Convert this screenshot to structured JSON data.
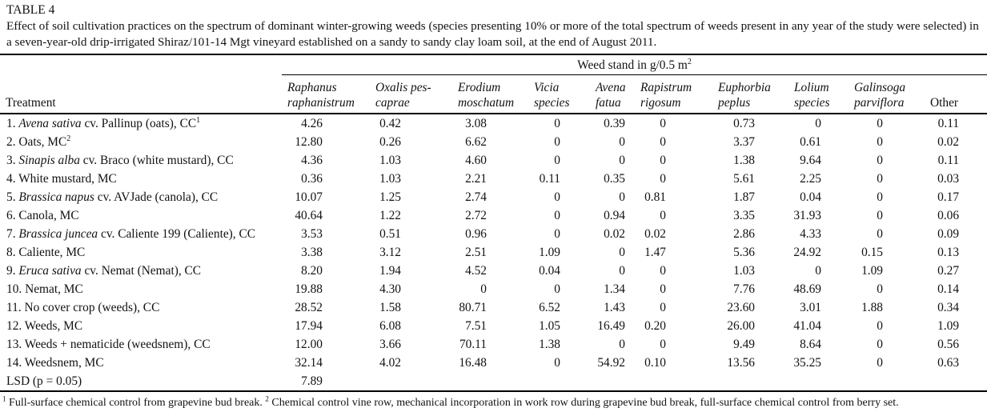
{
  "page": {
    "table_label": "TABLE 4",
    "caption": "Effect of soil cultivation practices on the spectrum of dominant winter-growing weeds (species presenting 10% or more of the total spectrum of weeds present in any year of the study were selected) in a seven-year-old drip-irrigated Shiraz/101-14 Mgt vineyard established on a sandy to sandy clay loam soil, at the end of August 2011.",
    "footnote": {
      "sup1": "1",
      "text1": " Full-surface chemical control from grapevine bud break. ",
      "sup2": "2",
      "text2": " Chemical control vine row, mechanical incorporation in work row during grapevine bud break, full-surface chemical control from berry set."
    }
  },
  "table": {
    "span_header": "Weed stand in g/0.5 m",
    "span_header_sup": "2",
    "treatment_header": "Treatment",
    "columns": [
      {
        "lines": [
          "Raphanus",
          "raphanistrum"
        ],
        "italic": true
      },
      {
        "lines": [
          "Oxalis pes-",
          "caprae"
        ],
        "italic": true
      },
      {
        "lines": [
          "Erodium",
          "moschatum"
        ],
        "italic": true
      },
      {
        "lines": [
          "Vicia",
          "species"
        ],
        "italic": true
      },
      {
        "lines": [
          "Avena",
          "fatua"
        ],
        "italic": true
      },
      {
        "lines": [
          "Rapistrum",
          "rigosum"
        ],
        "italic": true
      },
      {
        "lines": [
          "Euphorbia",
          "peplus"
        ],
        "italic": true
      },
      {
        "lines": [
          "Lolium",
          "species"
        ],
        "italic": true
      },
      {
        "lines": [
          "Galinsoga",
          "parviflora"
        ],
        "italic": true
      },
      {
        "lines": [
          "Other"
        ],
        "italic": false
      }
    ],
    "rows": [
      {
        "treatment": [
          {
            "t": "1. "
          },
          {
            "t": "Avena sativa",
            "i": true
          },
          {
            "t": " cv. Pallinup (oats), CC"
          },
          {
            "t": "1",
            "sup": true
          }
        ],
        "values": [
          "4.26",
          "0.42",
          "3.08",
          "0",
          "0.39",
          "0",
          "0.73",
          "0",
          "0",
          "0.11"
        ]
      },
      {
        "treatment": [
          {
            "t": "2. Oats, MC"
          },
          {
            "t": "2",
            "sup": true
          }
        ],
        "values": [
          "12.80",
          "0.26",
          "6.62",
          "0",
          "0",
          "0",
          "3.37",
          "0.61",
          "0",
          "0.02"
        ]
      },
      {
        "treatment": [
          {
            "t": "3. "
          },
          {
            "t": "Sinapis alba",
            "i": true
          },
          {
            "t": " cv. Braco (white mustard), CC"
          }
        ],
        "values": [
          "4.36",
          "1.03",
          "4.60",
          "0",
          "0",
          "0",
          "1.38",
          "9.64",
          "0",
          "0.11"
        ]
      },
      {
        "treatment": [
          {
            "t": "4. White mustard, MC"
          }
        ],
        "values": [
          "0.36",
          "1.03",
          "2.21",
          "0.11",
          "0.35",
          "0",
          "5.61",
          "2.25",
          "0",
          "0.03"
        ]
      },
      {
        "treatment": [
          {
            "t": "5. "
          },
          {
            "t": "Brassica napus",
            "i": true
          },
          {
            "t": " cv. AVJade (canola), CC"
          }
        ],
        "values": [
          "10.07",
          "1.25",
          "2.74",
          "0",
          "0",
          "0.81",
          "1.87",
          "0.04",
          "0",
          "0.17"
        ]
      },
      {
        "treatment": [
          {
            "t": "6. Canola, MC"
          }
        ],
        "values": [
          "40.64",
          "1.22",
          "2.72",
          "0",
          "0.94",
          "0",
          "3.35",
          "31.93",
          "0",
          "0.06"
        ]
      },
      {
        "treatment": [
          {
            "t": "7. "
          },
          {
            "t": "Brassica juncea",
            "i": true
          },
          {
            "t": " cv. Caliente 199 (Caliente), CC"
          }
        ],
        "values": [
          "3.53",
          "0.51",
          "0.96",
          "0",
          "0.02",
          "0.02",
          "2.86",
          "4.33",
          "0",
          "0.09"
        ]
      },
      {
        "treatment": [
          {
            "t": "8. Caliente, MC"
          }
        ],
        "values": [
          "3.38",
          "3.12",
          "2.51",
          "1.09",
          "0",
          "1.47",
          "5.36",
          "24.92",
          "0.15",
          "0.13"
        ]
      },
      {
        "treatment": [
          {
            "t": "9. "
          },
          {
            "t": "Eruca sativa",
            "i": true
          },
          {
            "t": " cv. Nemat (Nemat), CC"
          }
        ],
        "values": [
          "8.20",
          "1.94",
          "4.52",
          "0.04",
          "0",
          "0",
          "1.03",
          "0",
          "1.09",
          "0.27"
        ]
      },
      {
        "treatment": [
          {
            "t": "10. Nemat, MC"
          }
        ],
        "values": [
          "19.88",
          "4.30",
          "0",
          "0",
          "1.34",
          "0",
          "7.76",
          "48.69",
          "0",
          "0.14"
        ]
      },
      {
        "treatment": [
          {
            "t": "11. No cover crop (weeds), CC"
          }
        ],
        "values": [
          "28.52",
          "1.58",
          "80.71",
          "6.52",
          "1.43",
          "0",
          "23.60",
          "3.01",
          "1.88",
          "0.34"
        ]
      },
      {
        "treatment": [
          {
            "t": "12. Weeds, MC"
          }
        ],
        "values": [
          "17.94",
          "6.08",
          "7.51",
          "1.05",
          "16.49",
          "0.20",
          "26.00",
          "41.04",
          "0",
          "1.09"
        ]
      },
      {
        "treatment": [
          {
            "t": "13. Weeds + nematicide (weedsnem), CC"
          }
        ],
        "values": [
          "12.00",
          "3.66",
          "70.11",
          "1.38",
          "0",
          "0",
          "9.49",
          "8.64",
          "0",
          "0.56"
        ]
      },
      {
        "treatment": [
          {
            "t": "14. Weedsnem, MC"
          }
        ],
        "values": [
          "32.14",
          "4.02",
          "16.48",
          "0",
          "54.92",
          "0.10",
          "13.56",
          "35.25",
          "0",
          "0.63"
        ]
      },
      {
        "treatment": [
          {
            "t": "LSD (p = 0.05)"
          }
        ],
        "values": [
          "7.89",
          "",
          "",
          "",
          "",
          "",
          "",
          "",
          "",
          ""
        ]
      }
    ]
  }
}
